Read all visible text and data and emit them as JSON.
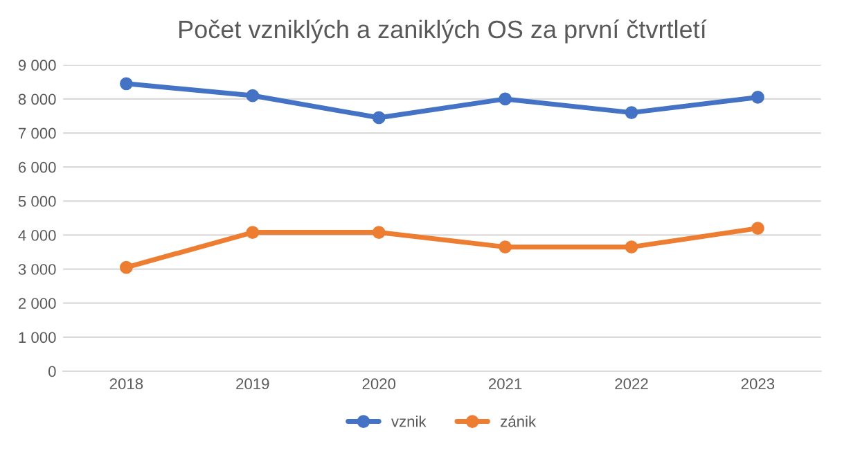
{
  "chart_data": {
    "type": "line",
    "title": "Počet vzniklých a zaniklých OS za první čtvrtletí",
    "categories": [
      "2018",
      "2019",
      "2020",
      "2021",
      "2022",
      "2023"
    ],
    "series": [
      {
        "name": "vznik",
        "color": "#4472c4",
        "values": [
          8450,
          8100,
          7450,
          8000,
          7600,
          8050
        ]
      },
      {
        "name": "zánik",
        "color": "#ed7d31",
        "values": [
          3050,
          4080,
          4080,
          3650,
          3650,
          4200
        ]
      }
    ],
    "ylim": [
      0,
      9000
    ],
    "yticks": [
      0,
      {
        "value": 1000,
        "label": "1 000"
      },
      {
        "value": 2000,
        "label": "2 000"
      },
      {
        "value": 3000,
        "label": "3 000"
      },
      {
        "value": 4000,
        "label": "4 000"
      },
      {
        "value": 5000,
        "label": "5 000"
      },
      {
        "value": 6000,
        "label": "6 000"
      },
      {
        "value": 7000,
        "label": "7 000"
      },
      {
        "value": 8000,
        "label": "8 000"
      },
      {
        "value": 9000,
        "label": "9 000"
      }
    ],
    "grid": "y",
    "legend": "bottom",
    "marker": "circle",
    "line_style": "solid"
  }
}
